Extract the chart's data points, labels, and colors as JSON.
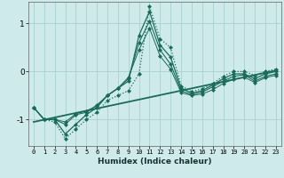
{
  "xlabel": "Humidex (Indice chaleur)",
  "ylabel": "",
  "bg_color": "#ceeaea",
  "grid_color": "#a8d0d0",
  "line_color": "#1a6b5a",
  "xlim": [
    -0.5,
    23.5
  ],
  "ylim": [
    -1.55,
    1.45
  ],
  "yticks": [
    -1,
    0,
    1
  ],
  "xticks": [
    0,
    1,
    2,
    3,
    4,
    5,
    6,
    7,
    8,
    9,
    10,
    11,
    12,
    13,
    14,
    15,
    16,
    17,
    18,
    19,
    20,
    21,
    22,
    23
  ],
  "series": [
    {
      "x": [
        0,
        1,
        2,
        3,
        4,
        5,
        6,
        7,
        8,
        9,
        10,
        11,
        12,
        13,
        14,
        15,
        16,
        17,
        18,
        19,
        20,
        21,
        22,
        23
      ],
      "y": [
        -0.75,
        -1.0,
        -1.0,
        -1.3,
        -1.1,
        -0.9,
        -0.75,
        -0.5,
        -0.35,
        -0.2,
        0.75,
        1.25,
        0.55,
        0.3,
        -0.35,
        -0.45,
        -0.4,
        -0.28,
        -0.15,
        -0.05,
        -0.05,
        -0.15,
        -0.05,
        0.0
      ],
      "style": "-",
      "marker": "D",
      "markersize": 2.0,
      "linewidth": 0.9
    },
    {
      "x": [
        0,
        1,
        2,
        3,
        4,
        5,
        6,
        7,
        8,
        9,
        10,
        11,
        12,
        13,
        14,
        15,
        16,
        17,
        18,
        19,
        20,
        21,
        22,
        23
      ],
      "y": [
        -0.75,
        -1.0,
        -1.0,
        -1.1,
        -0.9,
        -0.85,
        -0.7,
        -0.5,
        -0.35,
        -0.15,
        0.6,
        1.05,
        0.45,
        0.15,
        -0.4,
        -0.48,
        -0.43,
        -0.32,
        -0.2,
        -0.1,
        -0.07,
        -0.2,
        -0.1,
        -0.05
      ],
      "style": "-",
      "marker": "D",
      "markersize": 2.0,
      "linewidth": 0.8
    },
    {
      "x": [
        0,
        1,
        2,
        3,
        4,
        5,
        6,
        7,
        8,
        9,
        10,
        11,
        12,
        13,
        14,
        15,
        16,
        17,
        18,
        19,
        20,
        21,
        22,
        23
      ],
      "y": [
        -0.75,
        -1.0,
        -1.05,
        -1.4,
        -1.2,
        -1.0,
        -0.85,
        -0.6,
        -0.5,
        -0.4,
        -0.05,
        1.35,
        0.68,
        0.5,
        -0.3,
        -0.42,
        -0.36,
        -0.25,
        -0.1,
        0.0,
        0.0,
        -0.08,
        0.0,
        0.05
      ],
      "style": ":",
      "marker": "D",
      "markersize": 2.0,
      "linewidth": 0.9
    },
    {
      "x": [
        0,
        1,
        2,
        3,
        4,
        5,
        6,
        7,
        8,
        9,
        10,
        11,
        12,
        13,
        14,
        15,
        16,
        17,
        18,
        19,
        20,
        21,
        22,
        23
      ],
      "y": [
        -0.75,
        -1.0,
        -1.0,
        -1.05,
        -0.88,
        -0.82,
        -0.72,
        -0.5,
        -0.35,
        -0.12,
        0.45,
        0.9,
        0.32,
        0.05,
        -0.44,
        -0.5,
        -0.47,
        -0.38,
        -0.25,
        -0.16,
        -0.12,
        -0.23,
        -0.13,
        -0.08
      ],
      "style": "-",
      "marker": "D",
      "markersize": 2.0,
      "linewidth": 0.7
    },
    {
      "x": [
        0,
        23
      ],
      "y": [
        -1.05,
        0.02
      ],
      "style": "-",
      "marker": null,
      "markersize": 0,
      "linewidth": 1.3
    }
  ]
}
